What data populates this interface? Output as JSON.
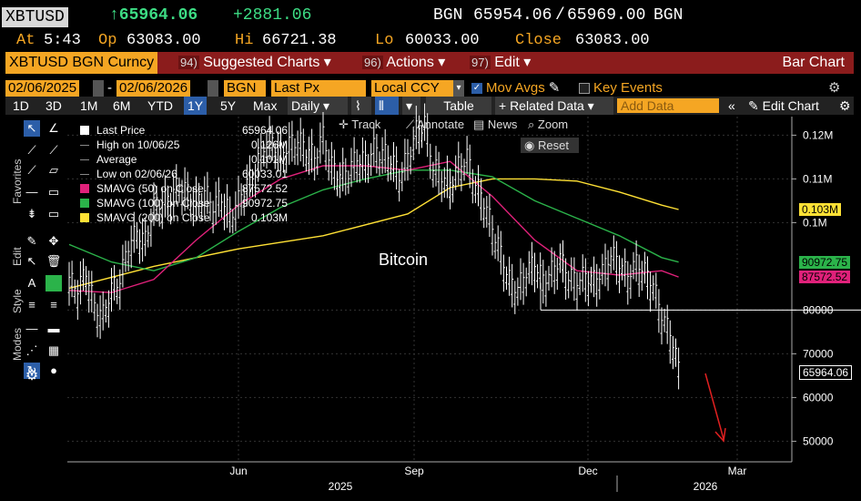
{
  "header": {
    "ticker": "XBTUSD",
    "last": "↑65964.06",
    "change": "+2881.06",
    "source": "BGN",
    "bid": "65954.06",
    "ask": "65969.00",
    "source2": "BGN",
    "at_label": "At",
    "at_time": "5:43",
    "op_label": "Op",
    "op_value": "63083.00",
    "hi_label": "Hi",
    "hi_value": "66721.38",
    "lo_label": "Lo",
    "lo_value": "60033.00",
    "close_label": "Close",
    "close_value": "63083.00"
  },
  "cmdbar": {
    "security": "XBTUSD BGN Curncy",
    "items": [
      {
        "num": "94)",
        "label": "Suggested Charts ▾"
      },
      {
        "num": "96)",
        "label": "Actions ▾"
      },
      {
        "num": "97)",
        "label": "Edit ▾"
      }
    ],
    "chart_type": "Bar Chart"
  },
  "controls": {
    "start_date": "02/06/2025",
    "end_date": "02/06/2026",
    "source": "BGN",
    "field": "Last Px",
    "currency": "Local CCY",
    "mov_avgs": "Mov Avgs",
    "key_events": "Key Events"
  },
  "toolbar": {
    "periods": [
      "1D",
      "3D",
      "1M",
      "6M",
      "YTD",
      "1Y",
      "5Y",
      "Max"
    ],
    "selected_period": "1Y",
    "frequency": "Daily ▾",
    "table": "Table",
    "related": "+ Related Data ▾",
    "add_data_placeholder": "Add Data",
    "edit_chart": "Edit Chart"
  },
  "palette": {
    "labels": [
      "Favorites",
      "Edit",
      "Style",
      "Modes"
    ]
  },
  "chart_tools": {
    "track": "Track",
    "annotate": "Annotate",
    "news": "News",
    "zoom": "Zoom",
    "reset": "Reset"
  },
  "legend": [
    {
      "name": "Last Price",
      "value": "65964.06",
      "color": "#ffffff"
    },
    {
      "name": "High on 10/06/25",
      "value": "0.126M",
      "color": ""
    },
    {
      "name": "Average",
      "value": "0.101M",
      "color": ""
    },
    {
      "name": "Low on 02/06/26",
      "value": "60033.01",
      "color": ""
    },
    {
      "name": "SMAVG (50)  on Close",
      "value": "87572.52",
      "color": "#e0217a"
    },
    {
      "name": "SMAVG (100)  on Close",
      "value": "90972.75",
      "color": "#2bb34a"
    },
    {
      "name": "SMAVG (200)  on Close",
      "value": "0.103M",
      "color": "#ffe135"
    }
  ],
  "annotation": "Bitcoin",
  "chart_data": {
    "type": "bar",
    "y_ticks": [
      "0.12M",
      "0.11M",
      "0.1M",
      "80000",
      "70000",
      "60000",
      "50000"
    ],
    "x_ticks": [
      "Jun",
      "Sep",
      "Dec",
      "Mar"
    ],
    "x_years": [
      "2025",
      "2026"
    ],
    "ylim": [
      48000,
      128000
    ],
    "price": [
      [
        0,
        86000
      ],
      [
        3,
        84000
      ],
      [
        6,
        88000
      ],
      [
        9,
        80000
      ],
      [
        12,
        78000
      ],
      [
        15,
        84000
      ],
      [
        18,
        86000
      ],
      [
        21,
        94000
      ],
      [
        24,
        97000
      ],
      [
        27,
        95000
      ],
      [
        30,
        103000
      ],
      [
        33,
        104000
      ],
      [
        36,
        105000
      ],
      [
        39,
        108000
      ],
      [
        42,
        106000
      ],
      [
        45,
        104000
      ],
      [
        48,
        106000
      ],
      [
        51,
        103000
      ],
      [
        54,
        105000
      ],
      [
        57,
        101000
      ],
      [
        60,
        104000
      ],
      [
        63,
        108000
      ],
      [
        66,
        111000
      ],
      [
        69,
        117000
      ],
      [
        72,
        118000
      ],
      [
        75,
        115000
      ],
      [
        78,
        117000
      ],
      [
        81,
        118000
      ],
      [
        84,
        116000
      ],
      [
        87,
        114000
      ],
      [
        90,
        119000
      ],
      [
        93,
        112000
      ],
      [
        96,
        110000
      ],
      [
        99,
        111000
      ],
      [
        102,
        114000
      ],
      [
        105,
        113000
      ],
      [
        108,
        116000
      ],
      [
        111,
        115000
      ],
      [
        114,
        114000
      ],
      [
        117,
        110000
      ],
      [
        120,
        114000
      ],
      [
        123,
        120000
      ],
      [
        126,
        122000
      ],
      [
        129,
        112000
      ],
      [
        132,
        110000
      ],
      [
        135,
        108000
      ],
      [
        138,
        112000
      ],
      [
        141,
        114000
      ],
      [
        144,
        108000
      ],
      [
        147,
        104000
      ],
      [
        150,
        98000
      ],
      [
        153,
        92000
      ],
      [
        156,
        86000
      ],
      [
        159,
        84000
      ],
      [
        162,
        88000
      ],
      [
        165,
        90000
      ],
      [
        168,
        86000
      ],
      [
        171,
        88000
      ],
      [
        174,
        91000
      ],
      [
        177,
        87000
      ],
      [
        180,
        86000
      ],
      [
        183,
        87000
      ],
      [
        186,
        86000
      ],
      [
        189,
        88000
      ],
      [
        192,
        92000
      ],
      [
        195,
        90000
      ],
      [
        198,
        87000
      ],
      [
        201,
        90000
      ],
      [
        204,
        88000
      ],
      [
        207,
        85000
      ],
      [
        210,
        78000
      ],
      [
        213,
        74000
      ],
      [
        216,
        66000
      ]
    ],
    "sma50": [
      [
        0,
        84500
      ],
      [
        15,
        84000
      ],
      [
        30,
        87000
      ],
      [
        45,
        96000
      ],
      [
        60,
        104000
      ],
      [
        75,
        110000
      ],
      [
        90,
        113000
      ],
      [
        105,
        113000
      ],
      [
        120,
        112000
      ],
      [
        135,
        114000
      ],
      [
        150,
        106000
      ],
      [
        165,
        96000
      ],
      [
        180,
        89000
      ],
      [
        195,
        88000
      ],
      [
        210,
        89000
      ],
      [
        216,
        87572.52
      ]
    ],
    "sma100": [
      [
        0,
        95000
      ],
      [
        15,
        91000
      ],
      [
        30,
        89000
      ],
      [
        45,
        92000
      ],
      [
        60,
        98000
      ],
      [
        75,
        103500
      ],
      [
        90,
        107500
      ],
      [
        105,
        110000
      ],
      [
        120,
        112000
      ],
      [
        135,
        112000
      ],
      [
        150,
        110500
      ],
      [
        165,
        105000
      ],
      [
        180,
        101000
      ],
      [
        195,
        97000
      ],
      [
        210,
        92000
      ],
      [
        216,
        90972.75
      ]
    ],
    "sma200": [
      [
        0,
        85000
      ],
      [
        30,
        90000
      ],
      [
        60,
        94000
      ],
      [
        90,
        97000
      ],
      [
        120,
        102000
      ],
      [
        135,
        108000
      ],
      [
        150,
        110000
      ],
      [
        165,
        110000
      ],
      [
        180,
        109500
      ],
      [
        195,
        107000
      ],
      [
        210,
        104000
      ],
      [
        216,
        103000
      ]
    ],
    "support_level": 80000
  },
  "price_tags": [
    {
      "label": "0.103M",
      "value": 103000,
      "color": "#ffe135"
    },
    {
      "label": "90972.75",
      "value": 90972.75,
      "color": "#2bb34a"
    },
    {
      "label": "87572.52",
      "value": 87572.52,
      "color": "#e0217a"
    },
    {
      "label": "65964.06",
      "value": 65964.06,
      "color": "#ffffff"
    }
  ]
}
